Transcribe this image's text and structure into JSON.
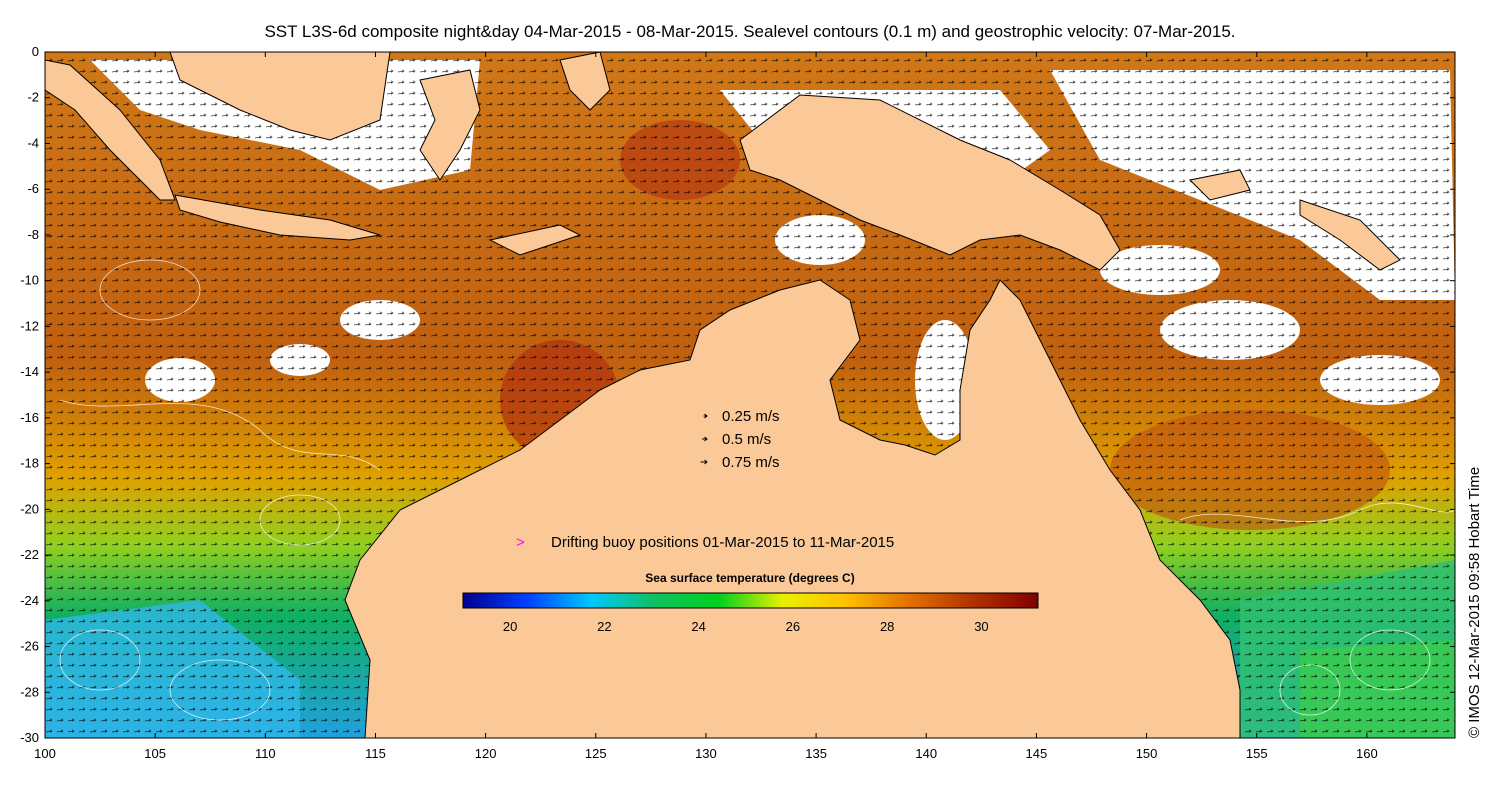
{
  "title": "SST L3S-6d composite night&day 04-Mar-2015 - 08-Mar-2015. Sealevel contours (0.1 m) and geostrophic velocity: 07-Mar-2015.",
  "credit": "© IMOS 12-Mar-2015 09:58 Hobart Time",
  "velocity_legend": [
    {
      "label": "0.25 m/s",
      "speed": 0.25
    },
    {
      "label": "0.5 m/s",
      "speed": 0.5
    },
    {
      "label": "0.75 m/s",
      "speed": 0.75
    }
  ],
  "buoy_legend": {
    "symbol": ">",
    "label": "Drifting buoy positions 01-Mar-2015 to 11-Mar-2015",
    "color": "#ff00ff"
  },
  "colorbar": {
    "title": "Sea surface temperature (degrees C)",
    "range": [
      19,
      31.2
    ],
    "ticks": [
      20,
      22,
      24,
      26,
      28,
      30
    ],
    "colors": [
      "#00008f",
      "#0040ff",
      "#00c8ff",
      "#10c060",
      "#00d020",
      "#e8f000",
      "#ffc000",
      "#e07000",
      "#b03000",
      "#800000"
    ]
  },
  "colors": {
    "land": "#fbc898",
    "coast": "#000000",
    "no_data": "#ffffff"
  },
  "map": {
    "lon_range": [
      100,
      164
    ],
    "lat_range": [
      -30,
      0
    ],
    "x_ticks": [
      100,
      105,
      110,
      115,
      120,
      125,
      130,
      135,
      140,
      145,
      150,
      155,
      160
    ],
    "y_ticks": [
      0,
      -2,
      -4,
      -6,
      -8,
      -10,
      -12,
      -14,
      -16,
      -18,
      -20,
      -22,
      -24,
      -26,
      -28,
      -30
    ]
  }
}
